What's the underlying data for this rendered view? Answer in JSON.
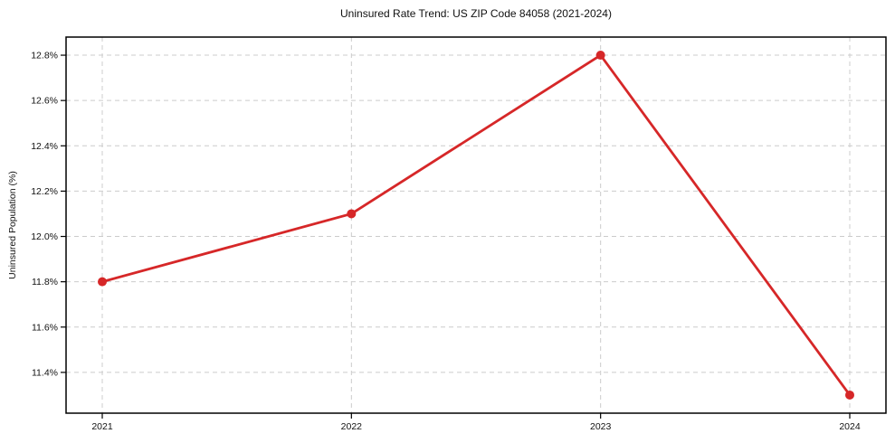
{
  "chart_data": {
    "type": "line",
    "title": "Uninsured Rate Trend: US ZIP Code 84058 (2021-2024)",
    "xlabel": "",
    "ylabel": "Uninsured Population (%)",
    "x": [
      2021,
      2022,
      2023,
      2024
    ],
    "y": [
      11.8,
      12.1,
      12.8,
      11.3
    ],
    "x_tick_labels": [
      "2021",
      "2022",
      "2023",
      "2024"
    ],
    "y_ticks": [
      11.4,
      11.6,
      11.8,
      12.0,
      12.2,
      12.4,
      12.6,
      12.8
    ],
    "y_tick_labels": [
      "11.4%",
      "11.6%",
      "11.8%",
      "12.0%",
      "12.2%",
      "12.4%",
      "12.6%",
      "12.8%"
    ],
    "ylim": [
      11.22,
      12.88
    ],
    "grid": true,
    "legend": "none",
    "line_color": "#d62728",
    "marker": "circle",
    "background_color": "#ffffff"
  }
}
